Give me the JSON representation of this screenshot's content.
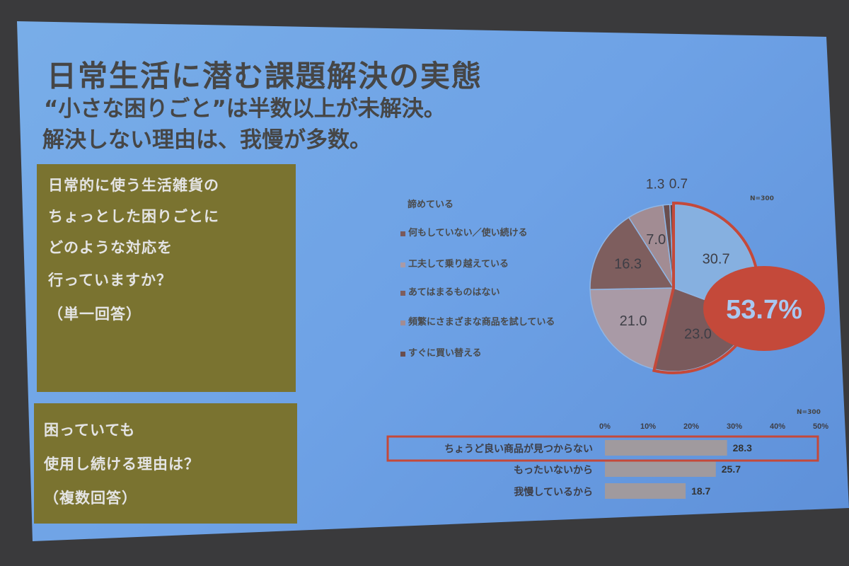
{
  "slide": {
    "title": "日常生活に潜む課題解決の実態",
    "subtitle_line1": "“小さな困りごと”は半数以上が未解決。",
    "subtitle_line2": "解決しない理由は、我慢が多数。"
  },
  "question1": {
    "lines": [
      "日常的に使う生活雑貨の",
      "ちょっとした困りごとに",
      "どのような対応を",
      "行っていますか？",
      "（単一回答）"
    ]
  },
  "question2": {
    "lines": [
      "困っていても",
      "使用し続ける理由は？",
      "（複数回答）"
    ]
  },
  "chart_data": [
    {
      "type": "pie",
      "note": "N=300",
      "highlight_label": "53.7%",
      "highlight_value": 53.7,
      "legend_position": "left",
      "slices": [
        {
          "label": "諦めている",
          "value": 30.7,
          "color": "#86b0e0"
        },
        {
          "label": "何もしていない／使い続ける",
          "value": 23.0,
          "color": "#7a5a5c"
        },
        {
          "label": "工夫して乗り越えている",
          "value": 21.0,
          "color": "#a99aa6"
        },
        {
          "label": "あてはまるものはない",
          "value": 16.3,
          "color": "#7e5e5e"
        },
        {
          "label": "頻繁にさまざまな商品を試している",
          "value": 7.0,
          "color": "#a28c93"
        },
        {
          "label": "すぐに買い替える",
          "value": 1.3,
          "color": "#6a4e4e"
        },
        {
          "label": "",
          "value": 0.7,
          "color": "#5e4747"
        }
      ],
      "accent_color": "#c4493a"
    },
    {
      "type": "bar",
      "orientation": "horizontal",
      "note": "N=300",
      "categories": [
        "ちょうど良い商品が見つからない",
        "もったいないから",
        "我慢しているから"
      ],
      "values": [
        28.3,
        25.7,
        18.7
      ],
      "xlim": [
        0,
        50
      ],
      "x_ticks": [
        "0%",
        "10%",
        "20%",
        "30%",
        "40%",
        "50%"
      ],
      "bar_color": "#a09a9e",
      "highlighted_category": "ちょうど良い商品が見つからない"
    }
  ]
}
